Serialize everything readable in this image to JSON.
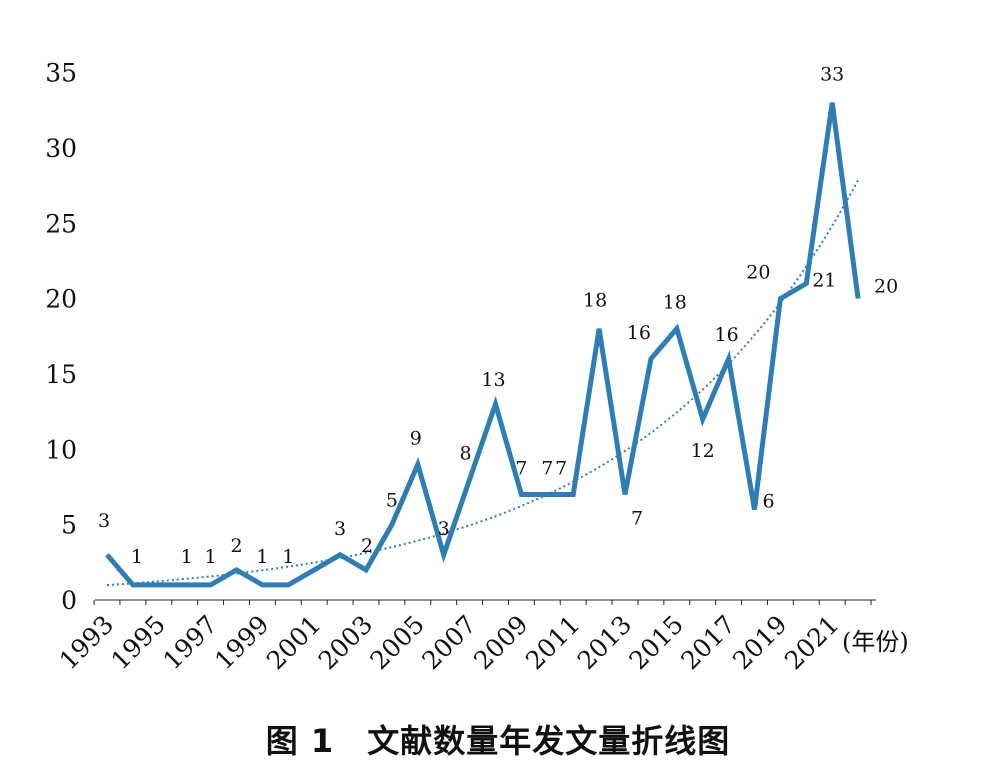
{
  "chart_data": {
    "type": "line",
    "x": [
      1993,
      1994,
      1995,
      1996,
      1997,
      1998,
      1999,
      2000,
      2001,
      2002,
      2003,
      2004,
      2005,
      2006,
      2007,
      2008,
      2009,
      2010,
      2011,
      2012,
      2013,
      2014,
      2015,
      2016,
      2017,
      2018,
      2019,
      2020,
      2021,
      2022
    ],
    "values": [
      3,
      1,
      1,
      1,
      1,
      2,
      1,
      1,
      2,
      3,
      2,
      5,
      9,
      3,
      8,
      13,
      7,
      7,
      7,
      18,
      7,
      16,
      18,
      12,
      16,
      6,
      20,
      21,
      33,
      20
    ],
    "data_labels": [
      "3",
      "1",
      "",
      "1",
      "1",
      "2",
      "1",
      "1",
      "",
      "3",
      "2",
      "5",
      "9",
      "3",
      "8",
      "13",
      "7",
      "7",
      "7",
      "18",
      "7",
      "16",
      "18",
      "12",
      "16",
      "6",
      "20",
      "21",
      "33",
      "20"
    ],
    "x_tick_labels": [
      "1993",
      "1995",
      "1997",
      "1999",
      "2001",
      "2003",
      "2005",
      "2007",
      "2009",
      "2011",
      "2013",
      "2015",
      "2017",
      "2019",
      "2021"
    ],
    "y_tick_labels": [
      "0",
      "5",
      "10",
      "15",
      "20",
      "25",
      "30",
      "35"
    ],
    "ylim": [
      0,
      35
    ],
    "x_unit": "(年份)",
    "trendline": "exponential",
    "line_color": "#2e7db5",
    "trend_color": "#2e7db5",
    "grid": false
  },
  "caption": "图 1　文献数量年发文量折线图"
}
